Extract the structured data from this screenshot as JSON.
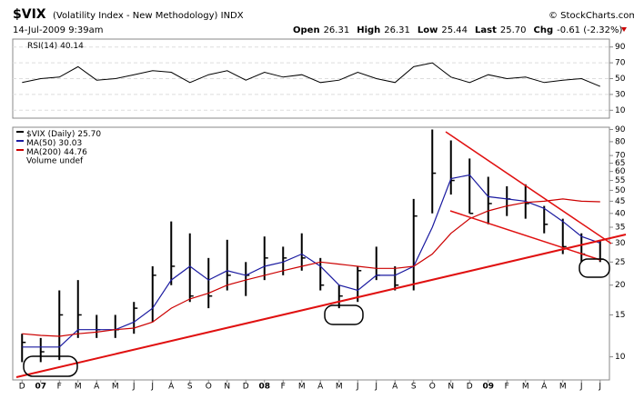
{
  "header": {
    "symbol": "$VIX",
    "description": "(Volatility Index - New Methodology) INDX",
    "credit": "© StockCharts.com",
    "timestamp": "14-Jul-2009 9:39am",
    "quote": [
      {
        "label": "Open",
        "value": "26.31"
      },
      {
        "label": "High",
        "value": "26.31"
      },
      {
        "label": "Low",
        "value": "25.44"
      },
      {
        "label": "Last",
        "value": "25.70"
      },
      {
        "label": "Chg",
        "value": "-0.61 (-2.32%)"
      }
    ]
  },
  "chart_data": [
    {
      "type": "line",
      "title": "RSI(14)",
      "last_label": "40.14",
      "color": "#000000",
      "values": [
        45,
        50,
        52,
        65,
        48,
        50,
        55,
        60,
        58,
        45,
        55,
        60,
        48,
        58,
        52,
        55,
        45,
        48,
        58,
        50,
        45,
        65,
        70,
        52,
        45,
        55,
        50,
        52,
        45,
        48,
        50,
        40.14
      ],
      "ylim": [
        0,
        100
      ],
      "yticks": [
        10,
        30,
        50,
        70,
        90
      ]
    },
    {
      "type": "hlc",
      "log_scale": true,
      "categories": [
        "D",
        "07",
        "F",
        "M",
        "A",
        "M",
        "J",
        "J",
        "A",
        "S",
        "O",
        "N",
        "D",
        "08",
        "F",
        "M",
        "A",
        "M",
        "J",
        "J",
        "A",
        "S",
        "O",
        "N",
        "D",
        "09",
        "F",
        "M",
        "A",
        "M",
        "J",
        "J"
      ],
      "series": [
        {
          "name": "$VIX (Daily)",
          "color": "#000000",
          "last_label": "25.70",
          "high": [
            12.5,
            12,
            19,
            21,
            15,
            15,
            17,
            24,
            37,
            33,
            26,
            31,
            25,
            32,
            29,
            33,
            26,
            20,
            24,
            29,
            24,
            46,
            90,
            81,
            68,
            57,
            52,
            53,
            43,
            38,
            33,
            31
          ],
          "low": [
            9.5,
            9.5,
            9.7,
            12,
            12,
            12,
            12.5,
            14,
            20,
            17,
            16,
            19,
            18,
            21,
            22,
            23,
            19,
            16,
            17,
            21,
            19,
            19,
            40,
            48,
            40,
            36,
            39,
            38,
            33,
            27,
            25,
            25
          ],
          "close": [
            11.5,
            10.5,
            15,
            15,
            13,
            13,
            16,
            22,
            24,
            18,
            18,
            22,
            22,
            26,
            26,
            26,
            20,
            18,
            23,
            22,
            20,
            39,
            59,
            55,
            40,
            44,
            46,
            44,
            36,
            29,
            27,
            25.7
          ]
        },
        {
          "name": "MA(50)",
          "color": "#1a1aa0",
          "last_label": "30.03",
          "values": [
            11,
            11,
            11,
            13,
            13,
            13,
            14,
            16,
            21,
            24,
            21,
            23,
            22,
            24,
            25,
            27,
            24,
            20,
            19,
            22,
            22,
            24,
            35,
            56,
            58,
            47,
            46,
            45,
            42,
            37,
            32,
            30.03
          ]
        },
        {
          "name": "MA(200)",
          "color": "#cc0000",
          "last_label": "44.76",
          "values": [
            12.5,
            12.3,
            12.2,
            12.5,
            12.7,
            13,
            13.2,
            14,
            16,
            17.5,
            18.5,
            20,
            21,
            22,
            23,
            24,
            25,
            24.5,
            24,
            23.5,
            23.5,
            24,
            27,
            33,
            38,
            41,
            43,
            44.5,
            45,
            46,
            45,
            44.76
          ]
        }
      ],
      "legend_extra": "Volume undef",
      "ylim": [
        8,
        92
      ],
      "yticks": [
        10,
        15,
        20,
        25,
        30,
        35,
        40,
        45,
        50,
        55,
        60,
        65,
        70,
        80,
        90
      ]
    }
  ]
}
